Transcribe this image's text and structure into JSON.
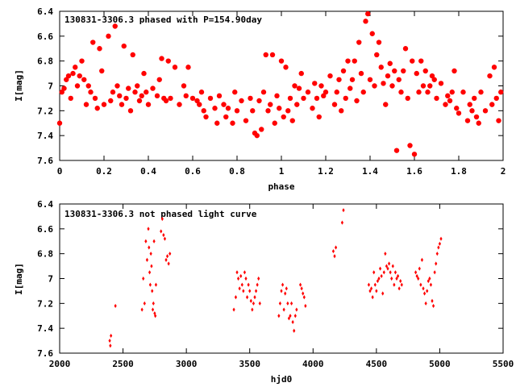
{
  "chart_data": [
    {
      "type": "scatter",
      "title": "130831-3306.3 phased with P=154.90day",
      "xlabel": "phase",
      "ylabel": "I[mag]",
      "xlim": [
        0,
        2
      ],
      "ylim": [
        6.4,
        7.6
      ],
      "y_inverted": true,
      "xticks": [
        "0",
        "0.2",
        "0.4",
        "0.6",
        "0.8",
        "1",
        "1.2",
        "1.4",
        "1.6",
        "1.8",
        "2"
      ],
      "yticks": [
        "6.4",
        "6.6",
        "6.8",
        "7",
        "7.2",
        "7.4",
        "7.6"
      ],
      "marker": "filled-circle",
      "color": "#ff0000",
      "grid": false,
      "series": [
        {
          "x": [
            0.0,
            0.01,
            0.02,
            0.03,
            0.04,
            0.05,
            0.06,
            0.07,
            0.08,
            0.09,
            0.1,
            0.11,
            0.12,
            0.13,
            0.14,
            0.15,
            0.16,
            0.17,
            0.18,
            0.19,
            0.2,
            0.22,
            0.23,
            0.24,
            0.25,
            0.26,
            0.27,
            0.28,
            0.29,
            0.3,
            0.31,
            0.32,
            0.33,
            0.34,
            0.35,
            0.36,
            0.37,
            0.38,
            0.39,
            0.4,
            0.42,
            0.44,
            0.45,
            0.46,
            0.47,
            0.48,
            0.49,
            0.5,
            0.52,
            0.54,
            0.56,
            0.57,
            0.58,
            0.6,
            0.62,
            0.63,
            0.64,
            0.65,
            0.66,
            0.68,
            0.7,
            0.71,
            0.72,
            0.74,
            0.75,
            0.76,
            0.78,
            0.79,
            0.8,
            0.82,
            0.84,
            0.86,
            0.87,
            0.88,
            0.89,
            0.9,
            0.91,
            0.92,
            0.93,
            0.94,
            0.95,
            0.96,
            0.97,
            0.98,
            0.99,
            1.0,
            1.01,
            1.02,
            1.03,
            1.04,
            1.05,
            1.06,
            1.07,
            1.08,
            1.09,
            1.1,
            1.12,
            1.14,
            1.15,
            1.16,
            1.17,
            1.18,
            1.19,
            1.2,
            1.22,
            1.24,
            1.25,
            1.26,
            1.27,
            1.28,
            1.29,
            1.3,
            1.31,
            1.32,
            1.33,
            1.34,
            1.35,
            1.36,
            1.37,
            1.38,
            1.39,
            1.4,
            1.41,
            1.42,
            1.43,
            1.44,
            1.45,
            1.46,
            1.47,
            1.48,
            1.49,
            1.5,
            1.51,
            1.52,
            1.53,
            1.54,
            1.55,
            1.56,
            1.57,
            1.58,
            1.59,
            1.6,
            1.61,
            1.62,
            1.63,
            1.64,
            1.65,
            1.66,
            1.67,
            1.68,
            1.69,
            1.7,
            1.72,
            1.74,
            1.75,
            1.76,
            1.77,
            1.78,
            1.79,
            1.8,
            1.82,
            1.84,
            1.85,
            1.86,
            1.87,
            1.88,
            1.89,
            1.9,
            1.92,
            1.94,
            1.95,
            1.96,
            1.97,
            1.98,
            1.99
          ],
          "y": [
            7.3,
            7.05,
            7.02,
            6.95,
            6.92,
            7.1,
            6.9,
            6.85,
            7.0,
            6.92,
            6.8,
            6.95,
            7.15,
            7.0,
            7.05,
            6.65,
            7.1,
            7.18,
            6.7,
            6.88,
            7.15,
            6.6,
            7.12,
            7.05,
            6.52,
            7.0,
            7.08,
            7.15,
            6.68,
            7.1,
            7.02,
            7.2,
            6.75,
            7.05,
            7.0,
            7.12,
            7.08,
            6.9,
            7.05,
            7.15,
            7.02,
            7.08,
            6.95,
            6.78,
            7.1,
            7.12,
            6.8,
            7.1,
            6.85,
            7.15,
            7.0,
            7.08,
            6.85,
            7.1,
            7.12,
            7.15,
            7.05,
            7.2,
            7.25,
            7.1,
            7.18,
            7.3,
            7.08,
            7.15,
            7.25,
            7.18,
            7.3,
            7.05,
            7.2,
            7.12,
            7.28,
            7.1,
            7.2,
            7.38,
            7.4,
            7.12,
            7.35,
            7.05,
            6.75,
            7.2,
            7.15,
            6.75,
            7.3,
            7.08,
            7.18,
            6.8,
            7.25,
            6.85,
            7.2,
            7.1,
            7.28,
            7.0,
            7.15,
            7.02,
            6.9,
            7.1,
            7.05,
            7.18,
            6.98,
            7.1,
            7.25,
            7.0,
            7.08,
            7.05,
            6.92,
            7.15,
            7.05,
            6.95,
            7.2,
            6.88,
            7.1,
            6.8,
            7.02,
            6.95,
            6.8,
            7.12,
            6.65,
            6.9,
            7.05,
            6.48,
            6.42,
            6.95,
            6.58,
            7.0,
            6.75,
            6.65,
            6.85,
            6.98,
            7.15,
            6.92,
            6.82,
            7.0,
            6.88,
            7.52,
            6.95,
            7.05,
            6.88,
            6.7,
            7.1,
            7.48,
            6.8,
            7.55,
            6.9,
            7.05,
            6.8,
            7.0,
            6.88,
            7.05,
            7.0,
            6.92,
            6.95,
            7.1,
            6.98,
            7.15,
            7.08,
            7.12,
            7.05,
            6.88,
            7.18,
            7.22,
            7.05,
            7.28,
            7.15,
            7.2,
            7.1,
            7.25,
            7.3,
            7.05,
            7.2,
            6.92,
            7.15,
            6.85,
            7.1,
            7.28,
            7.05
          ]
        }
      ]
    },
    {
      "type": "scatter",
      "title": "130831-3306.3 not phased light curve",
      "xlabel": "hjd0",
      "ylabel": "I[mag]",
      "xlim": [
        2000,
        5500
      ],
      "ylim": [
        6.4,
        7.6
      ],
      "y_inverted": true,
      "xticks": [
        "2000",
        "2500",
        "3000",
        "3500",
        "4000",
        "4500",
        "5000",
        "5500"
      ],
      "yticks": [
        "6.4",
        "6.6",
        "6.8",
        "7",
        "7.2",
        "7.4",
        "7.6"
      ],
      "marker": "small-diamond",
      "color": "#ff0000",
      "grid": false,
      "series": [
        {
          "x": [
            2395,
            2400,
            2405,
            2440,
            2650,
            2660,
            2670,
            2680,
            2690,
            2700,
            2705,
            2710,
            2715,
            2720,
            2725,
            2730,
            2735,
            2740,
            2745,
            2750,
            2755,
            2760,
            2800,
            2810,
            2820,
            2830,
            2840,
            2850,
            2860,
            2870,
            3375,
            3390,
            3400,
            3410,
            3420,
            3430,
            3440,
            3450,
            3460,
            3470,
            3480,
            3490,
            3500,
            3510,
            3520,
            3530,
            3540,
            3550,
            3560,
            3570,
            3580,
            3730,
            3740,
            3750,
            3760,
            3770,
            3780,
            3790,
            3800,
            3810,
            3820,
            3830,
            3840,
            3850,
            3860,
            3870,
            3900,
            3910,
            3920,
            3930,
            3940,
            4160,
            4170,
            4180,
            4230,
            4240,
            4440,
            4450,
            4460,
            4470,
            4480,
            4490,
            4500,
            4510,
            4520,
            4530,
            4540,
            4550,
            4560,
            4570,
            4580,
            4590,
            4600,
            4610,
            4620,
            4630,
            4640,
            4650,
            4660,
            4670,
            4680,
            4690,
            4700,
            4810,
            4820,
            4830,
            4840,
            4850,
            4860,
            4870,
            4880,
            4890,
            4900,
            4910,
            4920,
            4930,
            4940,
            4950,
            4960,
            4970,
            4980,
            4990,
            5000,
            5010
          ],
          "y": [
            7.5,
            7.54,
            7.46,
            7.22,
            7.25,
            7.0,
            7.2,
            6.7,
            6.85,
            6.6,
            6.75,
            6.95,
            7.05,
            6.8,
            6.9,
            7.1,
            7.25,
            7.2,
            6.7,
            7.28,
            7.3,
            7.05,
            6.62,
            6.52,
            6.65,
            6.68,
            6.85,
            6.82,
            6.88,
            6.8,
            7.25,
            7.15,
            6.95,
            7.0,
            7.08,
            6.98,
            7.05,
            7.1,
            6.95,
            7.0,
            7.15,
            7.05,
            7.1,
            7.18,
            7.25,
            7.2,
            7.15,
            7.1,
            7.05,
            7.0,
            7.2,
            7.3,
            7.2,
            7.1,
            7.05,
            7.25,
            7.12,
            7.08,
            7.2,
            7.32,
            7.3,
            7.2,
            7.35,
            7.42,
            7.3,
            7.25,
            7.05,
            7.08,
            7.12,
            7.15,
            7.22,
            6.78,
            6.82,
            6.75,
            6.55,
            6.45,
            7.05,
            7.1,
            7.08,
            7.15,
            6.95,
            7.05,
            7.1,
            7.02,
            7.0,
            6.92,
            6.98,
            7.12,
            6.95,
            6.8,
            6.9,
            6.92,
            6.88,
            6.95,
            7.0,
            6.9,
            7.05,
            6.95,
            7.0,
            6.98,
            7.08,
            7.02,
            7.05,
            6.95,
            6.98,
            7.0,
            6.92,
            7.05,
            6.85,
            7.08,
            7.12,
            7.2,
            7.1,
            7.02,
            7.0,
            7.05,
            7.18,
            7.22,
            6.95,
            6.88,
            6.8,
            6.75,
            6.72,
            6.68
          ]
        }
      ]
    }
  ]
}
